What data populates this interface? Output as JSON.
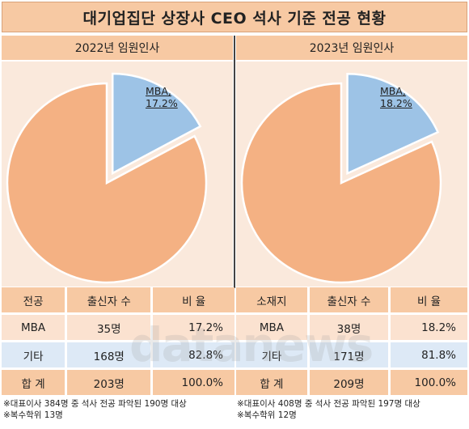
{
  "title": "대기업집단 상장사 CEO 석사 기준 전공 현황",
  "colors": {
    "mba": "#9dc3e6",
    "etc": "#f4b183",
    "header": "#f7c9a3",
    "bg": "#fae9dc"
  },
  "left": {
    "heading": "2022년 임원인사",
    "mba_label_line1": "MBA,",
    "mba_label_line2": "17.2%",
    "table": {
      "headers": [
        "전공",
        "출신자 수",
        "비  율"
      ],
      "rows": [
        [
          "MBA",
          "35명",
          "17.2%"
        ],
        [
          "기타",
          "168명",
          "82.8%"
        ],
        [
          "합  계",
          "203명",
          "100.0%"
        ]
      ]
    },
    "notes": [
      "※대표이사 384명 중 석사 전공 파악된 190명 대상",
      "※복수학위 13명"
    ]
  },
  "right": {
    "heading": "2023년 임원인사",
    "mba_label_line1": "MBA,",
    "mba_label_line2": "18.2%",
    "table": {
      "headers": [
        "소재지",
        "출신자 수",
        "비  율"
      ],
      "rows": [
        [
          "MBA",
          "38명",
          "18.2%"
        ],
        [
          "기타",
          "171명",
          "81.8%"
        ],
        [
          "합  계",
          "209명",
          "100.0%"
        ]
      ]
    },
    "notes": [
      "※대표이사 408명 중 석사 전공 파악된 197명 대상",
      "※복수학위 12명"
    ]
  },
  "watermark": "datanews",
  "chart_data": [
    {
      "type": "pie",
      "title": "2022년 임원인사",
      "categories": [
        "MBA",
        "기타"
      ],
      "values": [
        17.2,
        82.8
      ],
      "counts": [
        35,
        168
      ],
      "total": 203,
      "colors": [
        "#9dc3e6",
        "#f4b183"
      ]
    },
    {
      "type": "pie",
      "title": "2023년 임원인사",
      "categories": [
        "MBA",
        "기타"
      ],
      "values": [
        18.2,
        81.8
      ],
      "counts": [
        38,
        171
      ],
      "total": 209,
      "colors": [
        "#9dc3e6",
        "#f4b183"
      ]
    }
  ]
}
